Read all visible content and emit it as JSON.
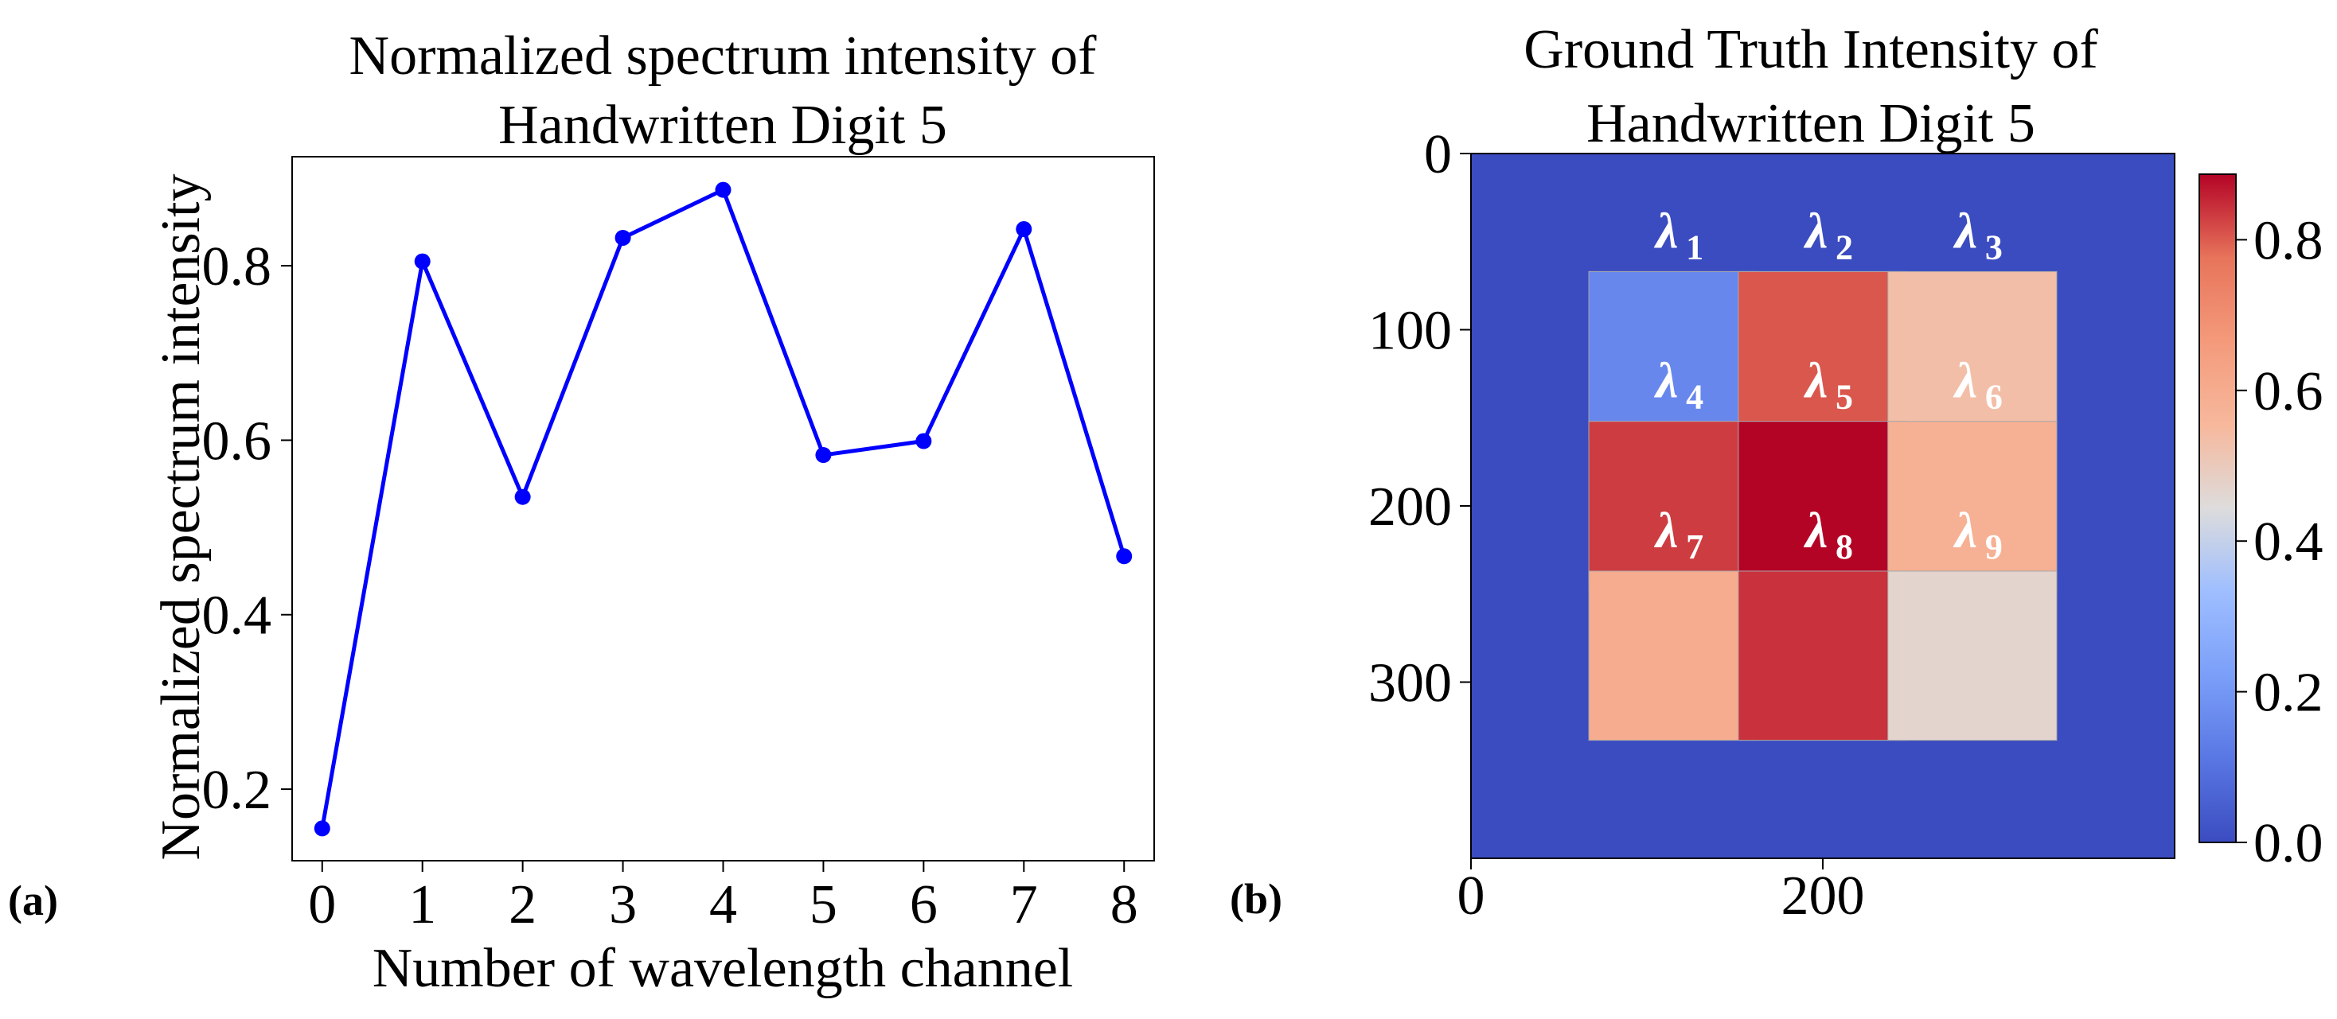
{
  "chart_data": [
    {
      "type": "line",
      "panel": "(a)",
      "title": [
        "Normalized spectrum intensity of",
        "Handwritten Digit 5"
      ],
      "xlabel": "Number of wavelength channel",
      "ylabel": "Normalized spectrum intensity",
      "x": [
        0,
        1,
        2,
        3,
        4,
        5,
        6,
        7,
        8
      ],
      "values": [
        0.155,
        0.805,
        0.535,
        0.832,
        0.887,
        0.583,
        0.599,
        0.842,
        0.467
      ],
      "xticks": [
        "0",
        "1",
        "2",
        "3",
        "4",
        "5",
        "6",
        "7",
        "8"
      ],
      "yticks": [
        0.2,
        0.4,
        0.6,
        0.8
      ],
      "ytick_labels": [
        "0.2",
        "0.4",
        "0.6",
        "0.8"
      ],
      "xlim": [
        -0.3,
        8.3
      ],
      "ylim": [
        0.118,
        0.925
      ],
      "color": "#0000ff",
      "grid": false
    },
    {
      "type": "heatmap",
      "panel": "(b)",
      "title": [
        "Ground Truth Intensity of",
        "Handwritten Digit 5"
      ],
      "colormap": "coolwarm",
      "xlim": [
        0,
        400
      ],
      "ylim": [
        400,
        0
      ],
      "xticks": [
        0,
        200
      ],
      "xtick_labels": [
        "0",
        "200"
      ],
      "yticks": [
        0,
        100,
        200,
        300
      ],
      "ytick_labels": [
        "0",
        "100",
        "200",
        "300"
      ],
      "background_value": 0.0,
      "grid_values": [
        [
          0.155,
          0.805,
          0.535
        ],
        [
          0.832,
          0.887,
          0.583
        ],
        [
          0.599,
          0.842,
          0.467
        ]
      ],
      "square_centers": [
        115,
        200,
        285
      ],
      "square_extent": 48,
      "labels": [
        {
          "symbol": "λ",
          "sub": "1"
        },
        {
          "symbol": "λ",
          "sub": "2"
        },
        {
          "symbol": "λ",
          "sub": "3"
        },
        {
          "symbol": "λ",
          "sub": "4"
        },
        {
          "symbol": "λ",
          "sub": "5"
        },
        {
          "symbol": "λ",
          "sub": "6"
        },
        {
          "symbol": "λ",
          "sub": "7"
        },
        {
          "symbol": "λ",
          "sub": "8"
        },
        {
          "symbol": "λ",
          "sub": "9"
        }
      ],
      "colorbar": {
        "min": 0.0,
        "max": 0.887,
        "ticks": [
          0.0,
          0.2,
          0.4,
          0.6,
          0.8
        ],
        "tick_labels": [
          "0.0",
          "0.2",
          "0.4",
          "0.6",
          "0.8"
        ]
      }
    }
  ]
}
